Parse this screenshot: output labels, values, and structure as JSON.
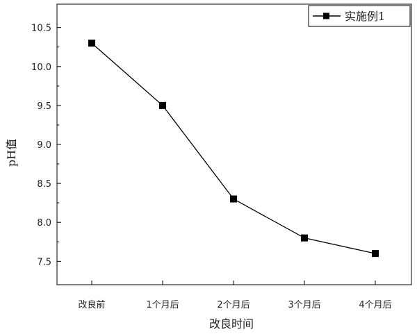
{
  "chart_data": {
    "type": "line",
    "title": "",
    "xlabel": "改良时间",
    "ylabel": "pH值",
    "categories": [
      "改良前",
      "1个月后",
      "2个月后",
      "3个月后",
      "4个月后"
    ],
    "ylim": [
      7.2,
      10.8
    ],
    "yticks": [
      "7.5",
      "8.0",
      "8.5",
      "9.0",
      "9.5",
      "10.0",
      "10.5"
    ],
    "grid": false,
    "legend": "top-right",
    "series": [
      {
        "name": "实施例1",
        "values": [
          10.3,
          9.5,
          8.3,
          7.8,
          7.6
        ],
        "color": "#000000",
        "marker": "square"
      }
    ]
  }
}
